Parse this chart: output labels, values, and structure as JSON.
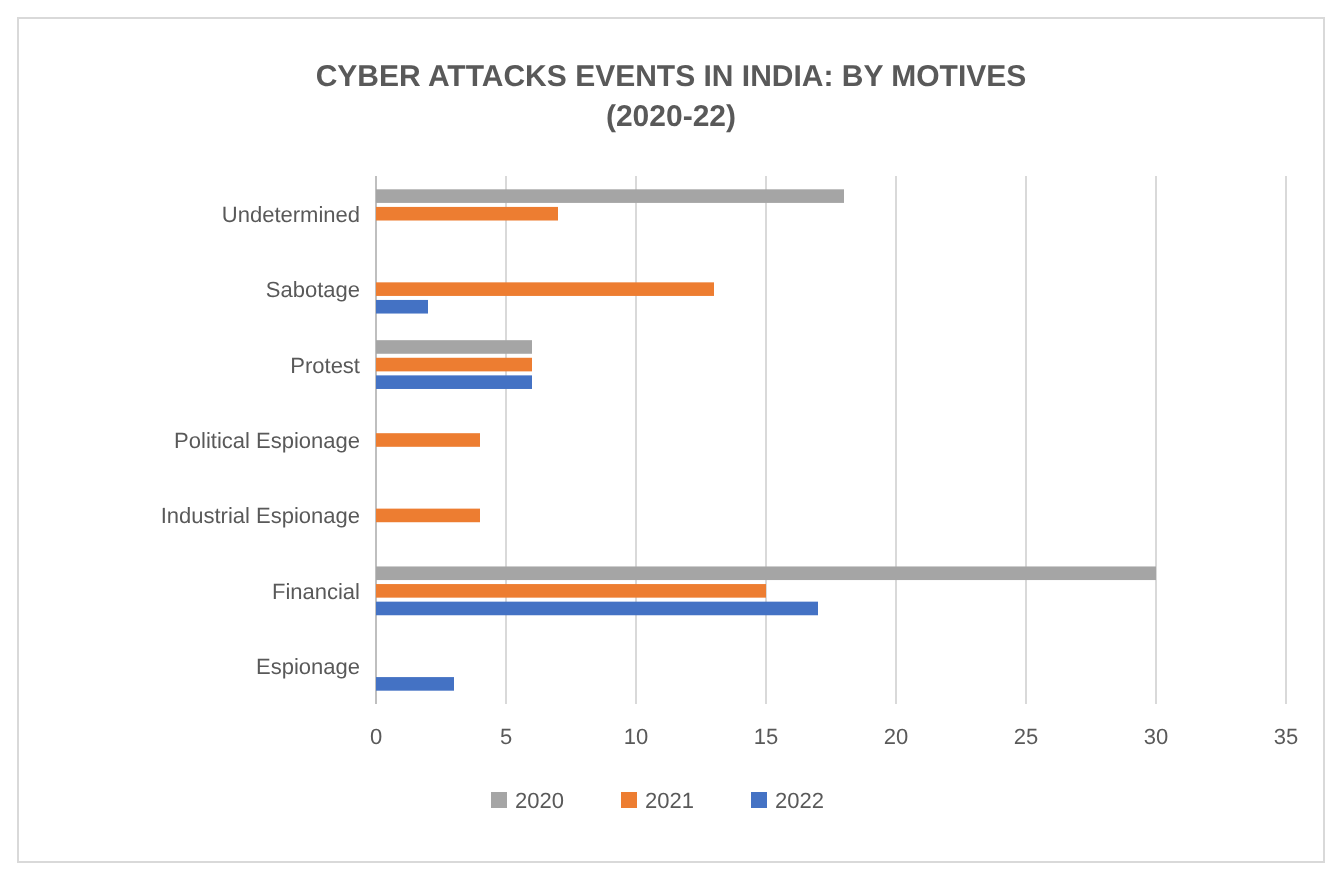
{
  "chart_data": {
    "type": "bar",
    "orientation": "horizontal",
    "title": "CYBER ATTACKS EVENTS IN INDIA: BY MOTIVES (2020-22)",
    "categories": [
      "Undetermined",
      "Sabotage",
      "Protest",
      "Political Espionage",
      "Industrial Espionage",
      "Financial",
      "Espionage"
    ],
    "series": [
      {
        "name": "2020",
        "color": "#a5a5a5",
        "values": [
          18,
          null,
          6,
          null,
          null,
          30,
          null
        ]
      },
      {
        "name": "2021",
        "color": "#ed7d31",
        "values": [
          7,
          13,
          6,
          4,
          4,
          15,
          null
        ]
      },
      {
        "name": "2022",
        "color": "#4472c4",
        "values": [
          null,
          2,
          6,
          null,
          null,
          17,
          3
        ]
      }
    ],
    "xlim": [
      0,
      35
    ],
    "xticks": [
      0,
      5,
      10,
      15,
      20,
      25,
      30,
      35
    ],
    "grid": "x",
    "legend": "bottom"
  }
}
